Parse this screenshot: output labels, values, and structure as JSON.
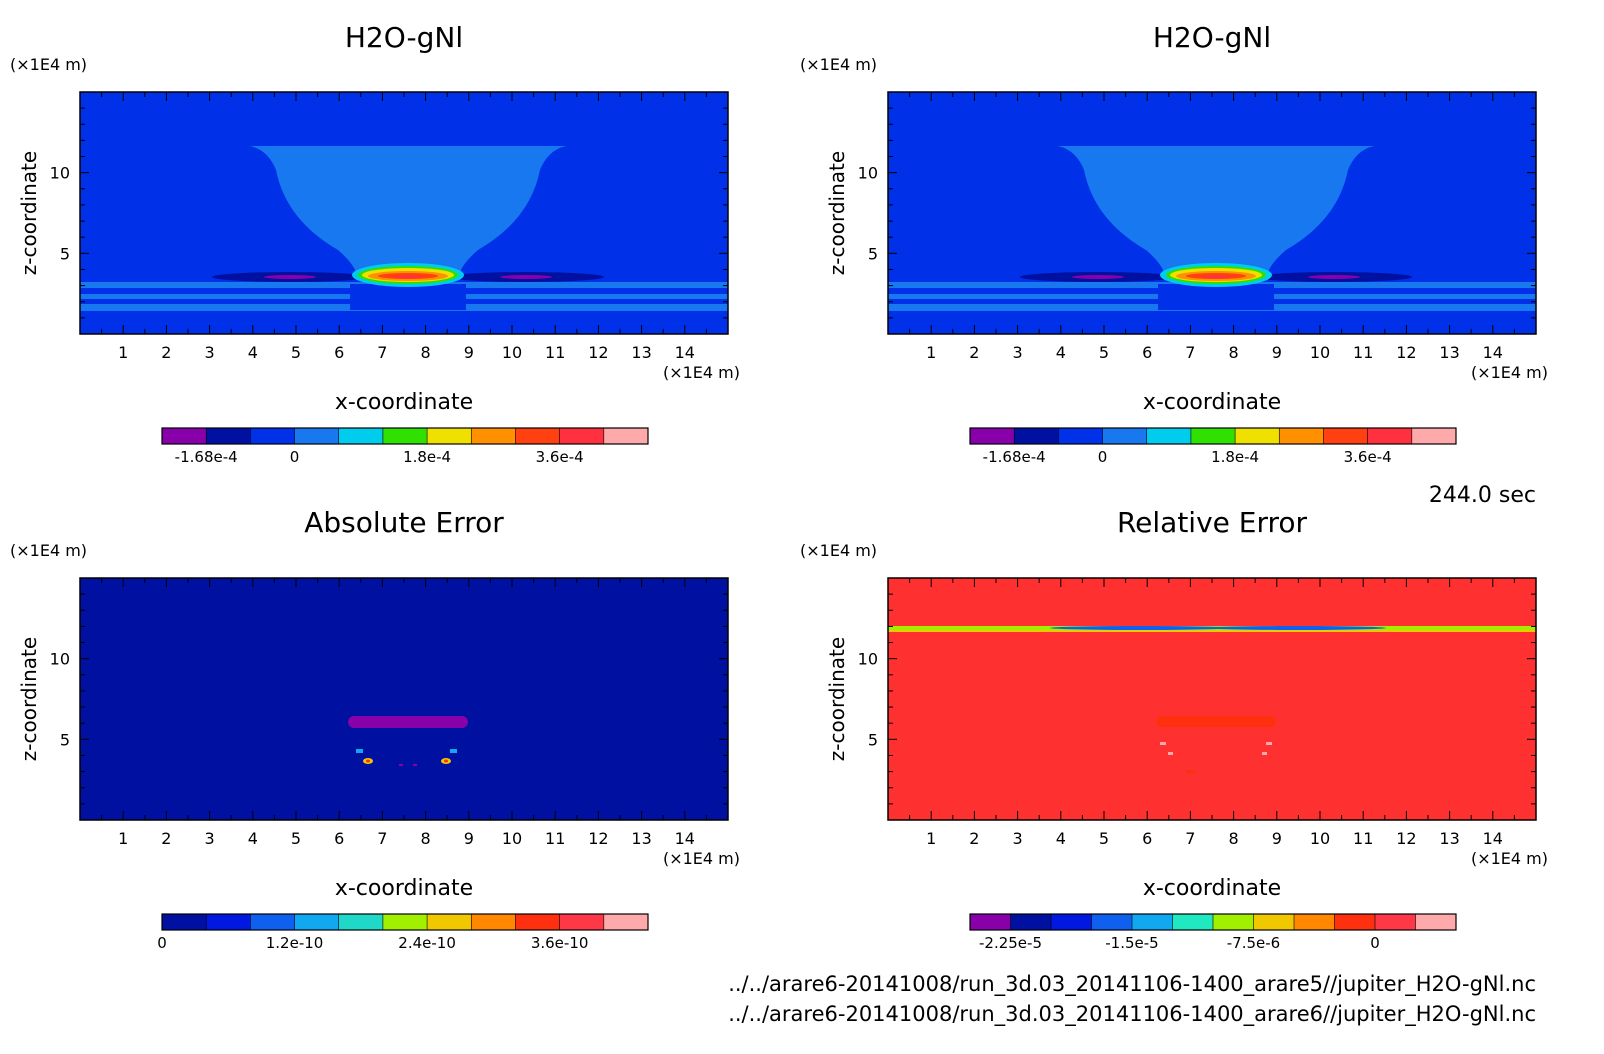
{
  "time_label": "244.0 sec",
  "file_lines": [
    "../../arare6-20141008/run_3d.03_20141106-1400_arare5//jupiter_H2O-gNl.nc",
    "../../arare6-20141008/run_3d.03_20141106-1400_arare6//jupiter_H2O-gNl.nc"
  ],
  "chart_data": [
    {
      "type": "heatmap",
      "title": "H2O-gNl",
      "xlabel": "x-coordinate",
      "ylabel": "z-coordinate",
      "x_unit": "(×1E4 m)",
      "y_unit": "(×1E4 m)",
      "xlim": [
        0,
        15
      ],
      "ylim": [
        0,
        15
      ],
      "x_ticks": [
        "1",
        "2",
        "3",
        "4",
        "5",
        "6",
        "7",
        "8",
        "9",
        "10",
        "11",
        "12",
        "13",
        "14"
      ],
      "y_ticks": [
        "5",
        "10"
      ],
      "colorbar": {
        "labels": [
          "-1.68e-4",
          "0",
          "1.8e-4",
          "3.6e-4"
        ],
        "colors": [
          "#8800aa",
          "#0010a0",
          "#0030e8",
          "#1878f0",
          "#00ccee",
          "#30e000",
          "#f0e000",
          "#ff9000",
          "#ff4010",
          "#ff3040",
          "#ffaaaa"
        ]
      }
    },
    {
      "type": "heatmap",
      "title": "H2O-gNl",
      "xlabel": "x-coordinate",
      "ylabel": "z-coordinate",
      "x_unit": "(×1E4 m)",
      "y_unit": "(×1E4 m)",
      "xlim": [
        0,
        15
      ],
      "ylim": [
        0,
        15
      ],
      "x_ticks": [
        "1",
        "2",
        "3",
        "4",
        "5",
        "6",
        "7",
        "8",
        "9",
        "10",
        "11",
        "12",
        "13",
        "14"
      ],
      "y_ticks": [
        "5",
        "10"
      ],
      "colorbar": {
        "labels": [
          "-1.68e-4",
          "0",
          "1.8e-4",
          "3.6e-4"
        ],
        "colors": [
          "#8800aa",
          "#0010a0",
          "#0030e8",
          "#1878f0",
          "#00ccee",
          "#30e000",
          "#f0e000",
          "#ff9000",
          "#ff4010",
          "#ff3040",
          "#ffaaaa"
        ]
      }
    },
    {
      "type": "heatmap",
      "title": "Absolute Error",
      "xlabel": "x-coordinate",
      "ylabel": "z-coordinate",
      "x_unit": "(×1E4 m)",
      "y_unit": "(×1E4 m)",
      "xlim": [
        0,
        15
      ],
      "ylim": [
        0,
        15
      ],
      "x_ticks": [
        "1",
        "2",
        "3",
        "4",
        "5",
        "6",
        "7",
        "8",
        "9",
        "10",
        "11",
        "12",
        "13",
        "14"
      ],
      "y_ticks": [
        "5",
        "10"
      ],
      "colorbar": {
        "labels": [
          "0",
          "1.2e-10",
          "2.4e-10",
          "3.6e-10"
        ],
        "colors": [
          "#0010a0",
          "#0018e0",
          "#1060f0",
          "#10a8f0",
          "#20d8c8",
          "#a0f000",
          "#f0c800",
          "#ff8800",
          "#ff3010",
          "#ff3848",
          "#ffaaaa"
        ]
      }
    },
    {
      "type": "heatmap",
      "title": "Relative Error",
      "xlabel": "x-coordinate",
      "ylabel": "z-coordinate",
      "x_unit": "(×1E4 m)",
      "y_unit": "(×1E4 m)",
      "xlim": [
        0,
        15
      ],
      "ylim": [
        0,
        15
      ],
      "x_ticks": [
        "1",
        "2",
        "3",
        "4",
        "5",
        "6",
        "7",
        "8",
        "9",
        "10",
        "11",
        "12",
        "13",
        "14"
      ],
      "y_ticks": [
        "5",
        "10"
      ],
      "colorbar": {
        "labels": [
          "-2.25e-5",
          "-1.5e-5",
          "-7.5e-6",
          "0"
        ],
        "colors": [
          "#8800aa",
          "#0010a0",
          "#0018e0",
          "#1060f0",
          "#10a8f0",
          "#20e8c0",
          "#a0f000",
          "#f0c800",
          "#ff8800",
          "#ff3010",
          "#ff3848",
          "#ffaaaa"
        ]
      }
    }
  ]
}
